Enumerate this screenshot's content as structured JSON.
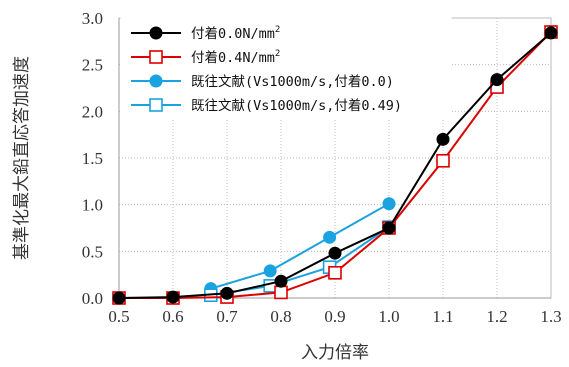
{
  "chart_data": {
    "type": "line",
    "xlabel": "入力倍率",
    "ylabel": "基準化最大鉛直応答加速度",
    "xlim": [
      0.5,
      1.3
    ],
    "ylim": [
      0.0,
      3.0
    ],
    "xticks": [
      "0.5",
      "0.6",
      "0.7",
      "0.8",
      "0.9",
      "1.0",
      "1.1",
      "1.2",
      "1.3"
    ],
    "yticks": [
      "0.0",
      "0.5",
      "1.0",
      "1.5",
      "2.0",
      "2.5",
      "3.0"
    ],
    "grid": "dotted",
    "legend_position": "top-left",
    "series": [
      {
        "name": "付着0.0N/mm",
        "name_sup": "2",
        "color": "#000000",
        "marker": "filled-circle",
        "x": [
          0.5,
          0.6,
          0.7,
          0.8,
          0.9,
          1.0,
          1.1,
          1.2,
          1.3
        ],
        "y": [
          0.0,
          0.01,
          0.05,
          0.18,
          0.48,
          0.75,
          1.7,
          2.34,
          2.84
        ]
      },
      {
        "name": "付着0.4N/mm",
        "name_sup": "2",
        "color": "#dd0000",
        "marker": "open-square",
        "x": [
          0.5,
          0.6,
          0.7,
          0.8,
          0.9,
          1.0,
          1.1,
          1.2,
          1.3
        ],
        "y": [
          0.0,
          0.0,
          0.01,
          0.06,
          0.27,
          0.75,
          1.47,
          2.26,
          2.85
        ]
      },
      {
        "name": "既往文献(Vs1000m/s,付着0.0)",
        "color": "#1aa3e0",
        "marker": "filled-circle",
        "x": [
          0.67,
          0.78,
          0.89,
          1.0
        ],
        "y": [
          0.1,
          0.29,
          0.65,
          1.01
        ]
      },
      {
        "name": "既往文献(Vs1000m/s,付着0.49)",
        "color": "#1aa3e0",
        "marker": "open-square",
        "x": [
          0.67,
          0.78,
          0.89,
          1.0
        ],
        "y": [
          0.03,
          0.13,
          0.33,
          0.76
        ]
      }
    ]
  }
}
